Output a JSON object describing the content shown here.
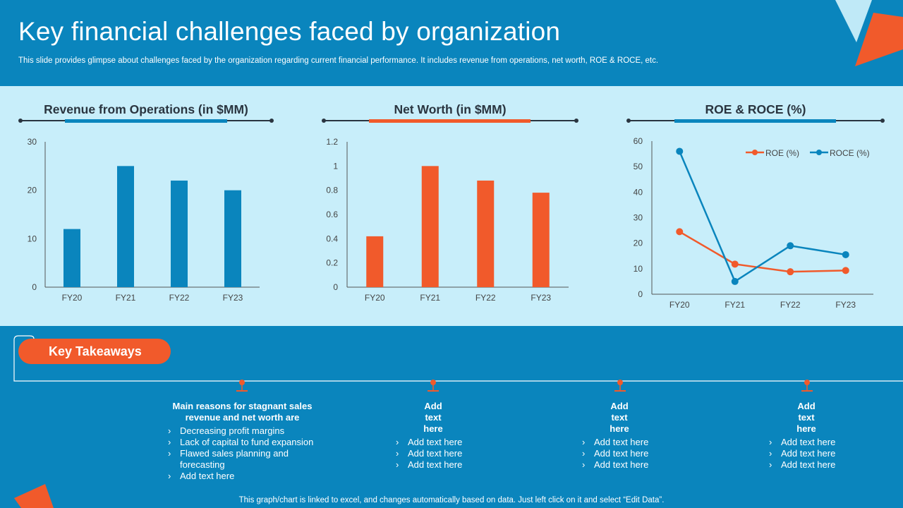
{
  "header": {
    "title": "Key financial challenges faced by organization",
    "subtitle": "This slide provides glimpse about challenges faced by the organization regarding current financial performance. It includes revenue from operations, net worth, ROE & ROCE, etc."
  },
  "colors": {
    "blue": "#0a85bd",
    "orange": "#f15a2b",
    "panel": "#c8eefa"
  },
  "chart_data": [
    {
      "type": "bar",
      "title": "Revenue from Operations (in $MM)",
      "categories": [
        "FY20",
        "FY21",
        "FY22",
        "FY23"
      ],
      "values": [
        12,
        25,
        22,
        20
      ],
      "ylim": [
        0,
        30
      ],
      "yticks": [
        "0",
        "10",
        "20",
        "30"
      ],
      "color": "#0a85bd"
    },
    {
      "type": "bar",
      "title": "Net Worth (in $MM)",
      "categories": [
        "FY20",
        "FY21",
        "FY22",
        "FY23"
      ],
      "values": [
        0.42,
        1.0,
        0.88,
        0.78
      ],
      "ylim": [
        0,
        1.2
      ],
      "yticks": [
        "0",
        "0.2",
        "0.4",
        "0.6",
        "0.8",
        "1",
        "1.2"
      ],
      "color": "#f15a2b"
    },
    {
      "type": "line",
      "title": "ROE & ROCE (%)",
      "categories": [
        "FY20",
        "FY21",
        "FY22",
        "FY23"
      ],
      "ylim": [
        0,
        60
      ],
      "yticks": [
        "0",
        "10",
        "20",
        "30",
        "40",
        "50",
        "60"
      ],
      "legend_position": "top-right",
      "series": [
        {
          "name": "ROE (%)",
          "values": [
            24.5,
            11.8,
            8.8,
            9.3
          ],
          "color": "#f15a2b"
        },
        {
          "name": "ROCE (%)",
          "values": [
            56,
            5,
            19,
            15.5
          ],
          "color": "#0a85bd"
        }
      ]
    }
  ],
  "takeaways": {
    "label": "Key Takeaways",
    "columns": [
      {
        "heading": "Main reasons for stagnant sales revenue and net worth are",
        "items": [
          "Decreasing profit margins",
          "Lack of capital to fund expansion",
          "Flawed sales planning and forecasting",
          "Add text here"
        ]
      },
      {
        "heading": "Add text here",
        "items": [
          "Add text here",
          "Add text here",
          "Add text here"
        ]
      },
      {
        "heading": "Add text here",
        "items": [
          "Add text here",
          "Add text here",
          "Add text here"
        ]
      },
      {
        "heading": "Add text here",
        "items": [
          "Add text here",
          "Add text here",
          "Add text here"
        ]
      }
    ]
  },
  "footer": "This graph/chart is linked to excel, and changes automatically based on data. Just left click on it and select “Edit Data”."
}
